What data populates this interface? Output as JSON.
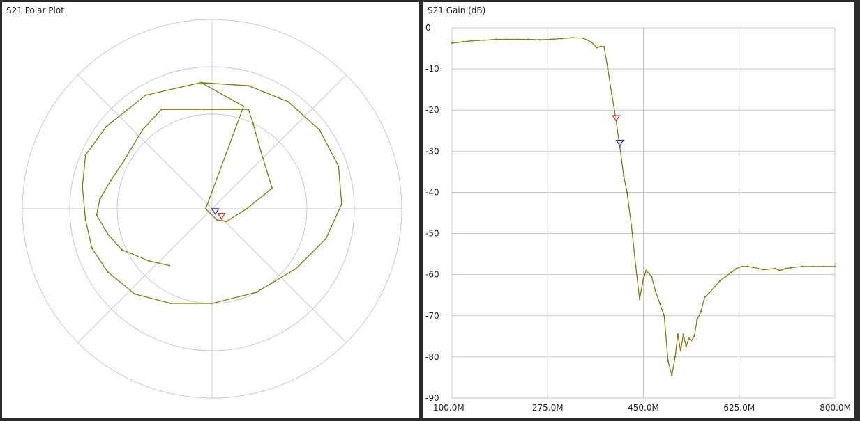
{
  "colors": {
    "trace": "#7f7f0c",
    "grid": "#c8c8c8",
    "marker1": "#e03030",
    "marker2": "#2a2aa8",
    "panel_bg": "#ffffff",
    "app_bg": "#2b2b2b"
  },
  "polar_panel": {
    "title": "S21 Polar Plot"
  },
  "gain_panel": {
    "title": "S21 Gain (dB)"
  },
  "chart_data": [
    {
      "type": "scatter",
      "name": "polar",
      "title": "S21 Polar Plot",
      "grid": true,
      "xlim": [
        -1.2,
        1.2
      ],
      "ylim": [
        -1.2,
        1.2
      ],
      "circles": [
        0.6,
        0.9,
        1.2
      ],
      "trace_points": [
        [
          -0.27,
          -0.36
        ],
        [
          -0.4,
          -0.33
        ],
        [
          -0.57,
          -0.26
        ],
        [
          -0.66,
          -0.16
        ],
        [
          -0.73,
          -0.04
        ],
        [
          -0.71,
          0.06
        ],
        [
          -0.64,
          0.18
        ],
        [
          -0.56,
          0.3
        ],
        [
          -0.44,
          0.5
        ],
        [
          -0.32,
          0.63
        ],
        [
          -0.05,
          0.63
        ],
        [
          0.23,
          0.63
        ],
        [
          0.26,
          0.54
        ],
        [
          0.31,
          0.36
        ],
        [
          0.38,
          0.13
        ],
        [
          0.22,
          0.0
        ],
        [
          0.09,
          -0.08
        ],
        [
          0.03,
          -0.07
        ],
        [
          -0.01,
          -0.03
        ],
        [
          -0.04,
          0.0
        ],
        [
          0.2,
          0.65
        ],
        [
          -0.07,
          0.8
        ],
        [
          -0.42,
          0.72
        ],
        [
          -0.67,
          0.52
        ],
        [
          -0.8,
          0.34
        ],
        [
          -0.82,
          0.14
        ],
        [
          -0.8,
          -0.07
        ],
        [
          -0.76,
          -0.25
        ],
        [
          -0.66,
          -0.4
        ],
        [
          -0.49,
          -0.54
        ],
        [
          -0.26,
          -0.6
        ],
        [
          0.0,
          -0.6
        ],
        [
          0.28,
          -0.53
        ],
        [
          0.53,
          -0.38
        ],
        [
          0.72,
          -0.19
        ],
        [
          0.82,
          0.03
        ],
        [
          0.8,
          0.27
        ],
        [
          0.68,
          0.5
        ],
        [
          0.48,
          0.68
        ],
        [
          0.23,
          0.78
        ],
        [
          -0.07,
          0.8
        ]
      ],
      "markers": [
        {
          "id": 1,
          "x": 0.06,
          "y": -0.06
        },
        {
          "id": 2,
          "x": 0.02,
          "y": -0.03
        }
      ]
    },
    {
      "type": "line",
      "name": "gain",
      "title": "S21 Gain (dB)",
      "xlabel": "",
      "ylabel": "",
      "xlim": [
        100,
        800
      ],
      "ylim": [
        -90,
        0
      ],
      "grid": true,
      "x_ticks": [
        "100.0M",
        "275.0M",
        "450.0M",
        "625.0M",
        "800.0M"
      ],
      "x_tick_values": [
        100,
        275,
        450,
        625,
        800
      ],
      "y_ticks": [
        "0",
        "-10",
        "-20",
        "-30",
        "-40",
        "-50",
        "-60",
        "-70",
        "-80",
        "-90"
      ],
      "y_tick_values": [
        0,
        -10,
        -20,
        -30,
        -40,
        -50,
        -60,
        -70,
        -80,
        -90
      ],
      "series": [
        {
          "x": [
            100,
            120,
            140,
            160,
            180,
            200,
            220,
            240,
            260,
            280,
            300,
            320,
            340,
            355,
            365,
            372,
            378,
            385,
            392,
            400,
            407,
            414,
            420,
            428,
            436,
            443,
            450,
            455,
            465,
            472,
            480,
            488,
            495,
            502,
            508,
            513,
            518,
            523,
            528,
            533,
            538,
            543,
            548,
            555,
            562,
            570,
            580,
            590,
            600,
            610,
            620,
            630,
            640,
            650,
            670,
            690,
            700,
            710,
            720,
            740,
            760,
            780,
            800
          ],
          "y": [
            -3.7,
            -3.4,
            -3.1,
            -3.0,
            -2.8,
            -2.8,
            -2.8,
            -2.8,
            -2.9,
            -2.8,
            -2.6,
            -2.4,
            -2.5,
            -3.5,
            -4.8,
            -4.5,
            -4.6,
            -10,
            -16,
            -22.5,
            -29,
            -36,
            -40,
            -48,
            -58,
            -66,
            -61,
            -59,
            -60.5,
            -64,
            -67,
            -70,
            -81,
            -84.5,
            -80,
            -74.5,
            -78.5,
            -74.5,
            -77.5,
            -75.5,
            -76,
            -75,
            -71,
            -69,
            -65.5,
            -64.5,
            -63,
            -61.5,
            -60.5,
            -59.5,
            -58.5,
            -58.0,
            -58.0,
            -58.2,
            -58.8,
            -58.5,
            -59,
            -58.5,
            -58.3,
            -58.0,
            -58.0,
            -58.0,
            -58.0
          ]
        }
      ],
      "markers": [
        {
          "id": 1,
          "x": 400,
          "y": -22.5
        },
        {
          "id": 2,
          "x": 407,
          "y": -28.5
        }
      ]
    }
  ]
}
